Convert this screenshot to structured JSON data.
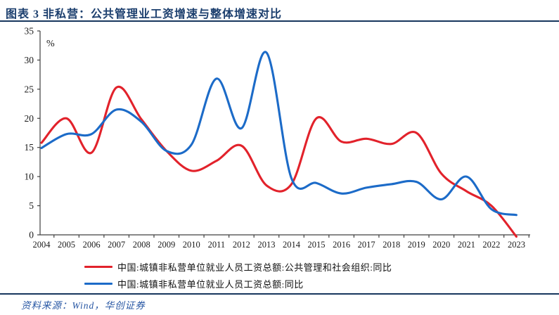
{
  "header": {
    "title": "图表 3  非私营：公共管理业工资增速与整体增速对比"
  },
  "chart_data": {
    "type": "line",
    "title": "图表 3  非私营：公共管理业工资增速与整体增速对比",
    "unit_label": "%",
    "x": [
      2004,
      2005,
      2006,
      2007,
      2008,
      2009,
      2010,
      2011,
      2012,
      2013,
      2014,
      2015,
      2016,
      2017,
      2018,
      2019,
      2020,
      2021,
      2022,
      2023
    ],
    "ylim": [
      0,
      35
    ],
    "ytick_step": 5,
    "grid": false,
    "smooth": true,
    "legend_position": "bottom-left",
    "series": [
      {
        "name": "中国:城镇非私营单位就业人员工资总额:公共管理和社会组织:同比",
        "color": "#e2222b",
        "values": [
          15.8,
          20.0,
          14.1,
          25.3,
          19.8,
          14.4,
          11.0,
          12.7,
          15.3,
          8.5,
          8.7,
          20.0,
          16.0,
          16.5,
          15.6,
          17.5,
          10.5,
          7.5,
          5.0,
          -0.3
        ]
      },
      {
        "name": "中国:城镇非私营单位就业人员工资总额:同比",
        "color": "#1c6bc8",
        "values": [
          14.9,
          17.3,
          17.3,
          21.5,
          19.4,
          14.4,
          15.5,
          26.8,
          18.3,
          31.3,
          9.7,
          8.9,
          7.1,
          8.1,
          8.7,
          9.1,
          6.1,
          10.0,
          4.4,
          3.4
        ]
      }
    ]
  },
  "footer": {
    "source_note": "资料来源：Wind，华创证券"
  },
  "style": {
    "title_color": "#1c3f6e",
    "rule_color": "#17375e",
    "source_color": "#2857a4",
    "axis_color": "#404040",
    "tick_label_color": "#1a1a1a"
  }
}
